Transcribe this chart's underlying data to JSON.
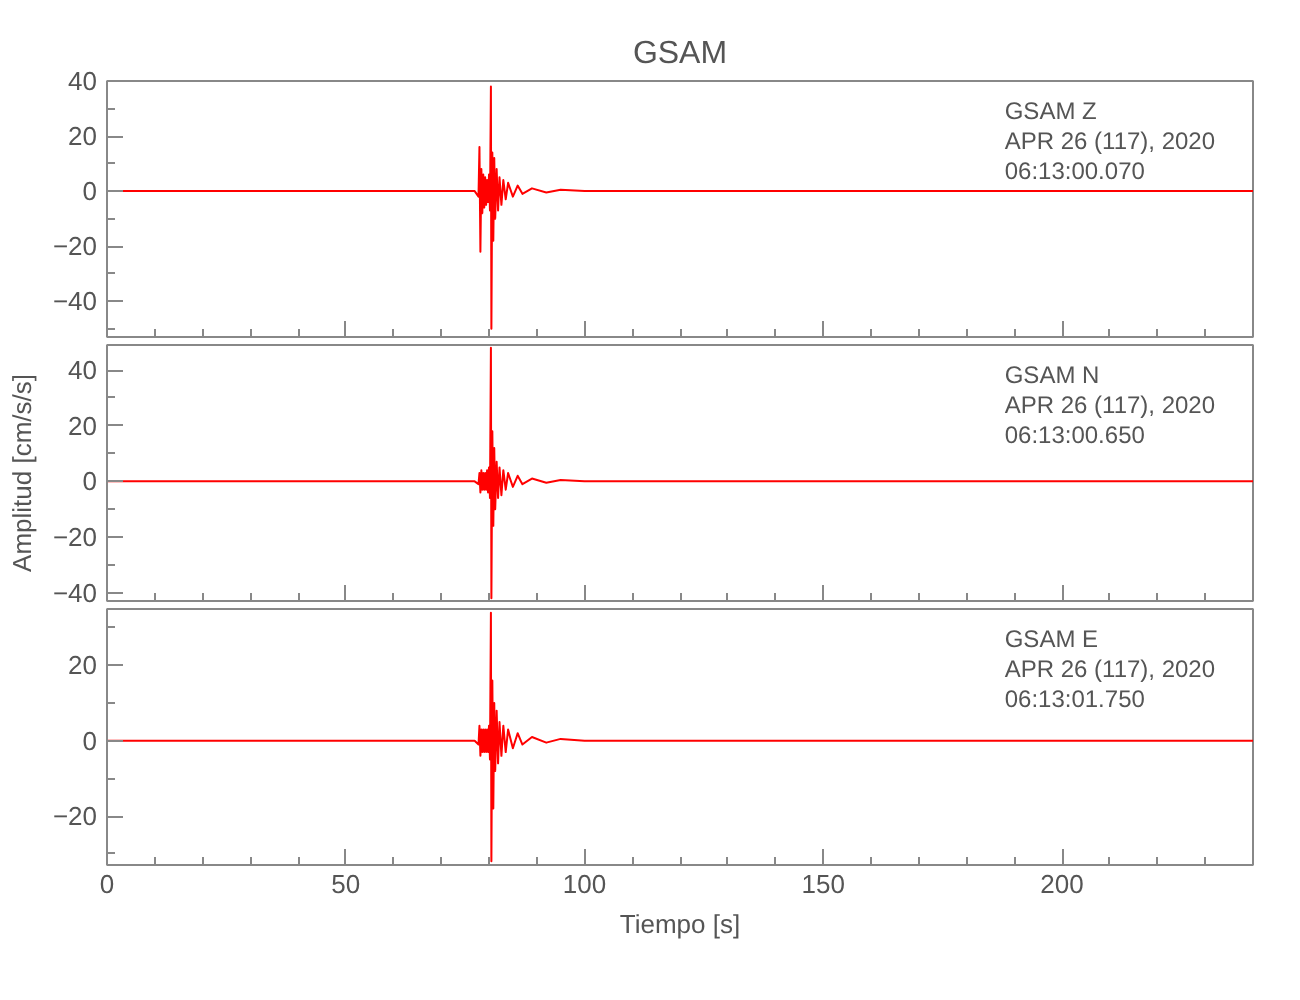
{
  "chart_data": [
    {
      "type": "line",
      "title": "GSAM",
      "annotations": [
        "GSAM   Z",
        "APR 26 (117), 2020",
        "06:13:00.070"
      ],
      "xlim": [
        0,
        240
      ],
      "xticks": [
        0,
        50,
        100,
        150,
        200
      ],
      "ylim": [
        -53,
        40
      ],
      "yticks": [
        -40,
        -20,
        0,
        20,
        40
      ],
      "tick_labels": "y",
      "series": [
        {
          "color": "#ff0000",
          "x": [
            0,
            20,
            40,
            60,
            77,
            77.8,
            78.0,
            78.2,
            78.4,
            78.6,
            78.8,
            79.0,
            79.2,
            79.4,
            79.6,
            79.8,
            80.0,
            80.2,
            80.4,
            80.5,
            80.7,
            80.9,
            81.1,
            81.3,
            81.6,
            81.9,
            82.2,
            82.6,
            83,
            83.5,
            84,
            85,
            86,
            87,
            89,
            92,
            95,
            100,
            120,
            150,
            175,
            200,
            240
          ],
          "values": [
            0,
            0,
            0,
            0,
            0,
            -2,
            16,
            -22,
            8,
            -8,
            6,
            -6,
            5,
            -5,
            4,
            -4,
            6,
            -7,
            38,
            -50,
            14,
            -18,
            12,
            -10,
            8,
            -7,
            5,
            -5,
            4,
            -3,
            3,
            -2,
            2,
            -1,
            1,
            -0.5,
            0.5,
            0,
            0,
            0,
            0,
            0,
            0
          ]
        }
      ]
    },
    {
      "type": "line",
      "ylabel": "Amplitud [cm/s/s]",
      "annotations": [
        "GSAM   N",
        "APR 26 (117), 2020",
        "06:13:00.650"
      ],
      "xlim": [
        0,
        240
      ],
      "xticks": [
        0,
        50,
        100,
        150,
        200
      ],
      "ylim": [
        -43,
        49
      ],
      "yticks": [
        -40,
        -20,
        0,
        20,
        40
      ],
      "tick_labels": "y",
      "series": [
        {
          "color": "#ff0000",
          "x": [
            0,
            20,
            40,
            60,
            77,
            77.8,
            78.0,
            78.2,
            78.4,
            78.6,
            78.8,
            79.0,
            79.2,
            79.4,
            79.6,
            79.8,
            80.0,
            80.2,
            80.4,
            80.5,
            80.7,
            80.9,
            81.1,
            81.3,
            81.6,
            81.9,
            82.2,
            82.6,
            83,
            83.5,
            84,
            85,
            86,
            87,
            89,
            92,
            95,
            100,
            120,
            150,
            175,
            200,
            240
          ],
          "values": [
            0,
            0,
            0,
            0,
            0,
            -1,
            3,
            -4,
            4,
            -3,
            3,
            -3,
            3,
            -3,
            4,
            -4,
            5,
            -6,
            48,
            -42,
            18,
            -16,
            12,
            -10,
            7,
            -6,
            5,
            -5,
            4,
            -3,
            3,
            -2,
            2,
            -1,
            1,
            -0.5,
            0.5,
            0,
            0,
            0,
            0,
            0,
            0
          ]
        }
      ]
    },
    {
      "type": "line",
      "xlabel": "Tiempo [s]",
      "annotations": [
        "GSAM   E",
        "APR 26 (117), 2020",
        "06:13:01.750"
      ],
      "xlim": [
        0,
        240
      ],
      "xticks": [
        0,
        50,
        100,
        150,
        200
      ],
      "ylim": [
        -33,
        35
      ],
      "yticks": [
        -20,
        0,
        20
      ],
      "series": [
        {
          "color": "#ff0000",
          "x": [
            0,
            20,
            40,
            60,
            77,
            77.8,
            78.0,
            78.2,
            78.4,
            78.6,
            78.8,
            79.0,
            79.2,
            79.4,
            79.6,
            79.8,
            80.0,
            80.2,
            80.4,
            80.5,
            80.7,
            80.9,
            81.1,
            81.3,
            81.6,
            81.9,
            82.2,
            82.6,
            83,
            83.5,
            84,
            85,
            86,
            87,
            89,
            92,
            95,
            100,
            120,
            150,
            175,
            200,
            240
          ],
          "values": [
            0,
            0,
            0,
            0,
            0,
            -1,
            4,
            -4,
            3,
            -3,
            3,
            -3,
            3,
            -3,
            3,
            -3,
            4,
            -5,
            34,
            -32,
            16,
            -18,
            10,
            -8,
            8,
            -6,
            5,
            -4,
            4,
            -3,
            3,
            -2,
            2,
            -1,
            1,
            -0.5,
            0.5,
            0,
            0,
            0,
            0,
            0,
            0
          ]
        }
      ]
    }
  ]
}
